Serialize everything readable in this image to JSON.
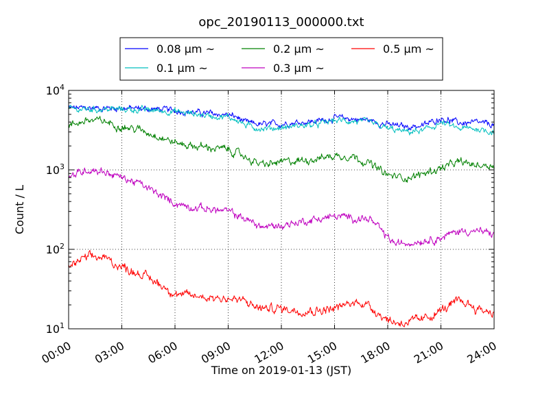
{
  "chart_data": {
    "type": "line",
    "title": "opc_20190113_000000.txt",
    "xlabel": "Time on 2019-01-13 (JST)",
    "ylabel": "Count / L",
    "xlim": [
      0,
      24
    ],
    "ylim": [
      10,
      10000
    ],
    "yscale": "log",
    "grid": true,
    "legend_position": "top-center",
    "x_ticks": [
      0,
      3,
      6,
      9,
      12,
      15,
      18,
      21,
      24
    ],
    "x_tick_labels": [
      "00:00",
      "03:00",
      "06:00",
      "09:00",
      "12:00",
      "15:00",
      "18:00",
      "21:00",
      "24:00"
    ],
    "y_ticks": [
      10,
      100,
      1000,
      10000
    ],
    "y_tick_labels": [
      {
        "base": "10",
        "exp": "1"
      },
      {
        "base": "10",
        "exp": "2"
      },
      {
        "base": "10",
        "exp": "3"
      },
      {
        "base": "10",
        "exp": "4"
      }
    ],
    "series": [
      {
        "name": "0.08 μm ~",
        "color": "#0000ff",
        "noise": 0.05,
        "x": [
          0,
          1,
          2,
          3,
          4,
          5,
          6,
          7,
          8,
          9,
          9.5,
          10,
          11,
          12,
          13,
          14,
          15,
          16,
          17,
          18,
          19,
          20,
          21,
          22,
          23,
          24
        ],
        "y": [
          6000,
          6000,
          6000,
          6000,
          5900,
          5800,
          5600,
          5300,
          5100,
          4900,
          4600,
          3900,
          3700,
          3800,
          4000,
          4100,
          4500,
          4400,
          4200,
          3700,
          3500,
          3600,
          4500,
          3900,
          3900,
          3700
        ]
      },
      {
        "name": "0.1 μm ~",
        "color": "#00bfbf",
        "noise": 0.05,
        "x": [
          0,
          1,
          2,
          3,
          4,
          5,
          6,
          7,
          8,
          9,
          9.5,
          10,
          11,
          12,
          13,
          14,
          15,
          16,
          17,
          18,
          19,
          20,
          21,
          22,
          23,
          24
        ],
        "y": [
          5800,
          5800,
          5800,
          5800,
          5700,
          5600,
          5400,
          5100,
          4800,
          4600,
          4300,
          3600,
          3300,
          3400,
          3600,
          3700,
          4200,
          4100,
          3900,
          3300,
          3000,
          3100,
          3900,
          3300,
          3300,
          3000
        ]
      },
      {
        "name": "0.2 μm ~",
        "color": "#008000",
        "noise": 0.06,
        "x": [
          0,
          0.5,
          1,
          2,
          3,
          4,
          5,
          6,
          7,
          8,
          9,
          10,
          10.5,
          11,
          12,
          13,
          14,
          15,
          16,
          17,
          18,
          19,
          19.5,
          20,
          21,
          22,
          23,
          24
        ],
        "y": [
          3500,
          3900,
          4200,
          4100,
          3500,
          3200,
          2700,
          2200,
          2000,
          1900,
          1800,
          1450,
          1250,
          1150,
          1250,
          1300,
          1400,
          1500,
          1500,
          1200,
          850,
          800,
          820,
          900,
          1050,
          1250,
          1150,
          1150
        ]
      },
      {
        "name": "0.3 μm ~",
        "color": "#bf00bf",
        "noise": 0.06,
        "x": [
          0,
          0.5,
          1,
          1.5,
          2,
          3,
          4,
          5,
          6,
          7,
          8,
          9,
          10,
          10.5,
          11,
          12,
          13,
          14,
          15,
          16,
          17,
          18,
          18.5,
          19,
          20,
          21,
          22,
          23,
          24
        ],
        "y": [
          800,
          900,
          1000,
          1000,
          950,
          800,
          670,
          500,
          380,
          340,
          320,
          300,
          240,
          210,
          190,
          200,
          220,
          240,
          260,
          250,
          240,
          140,
          115,
          120,
          130,
          140,
          170,
          170,
          155
        ]
      },
      {
        "name": "0.5 μm ~",
        "color": "#ff0000",
        "noise": 0.07,
        "x": [
          0,
          0.5,
          1,
          1.5,
          2,
          3,
          4,
          5,
          6,
          6.5,
          7,
          8,
          9,
          10,
          10.5,
          11,
          12,
          13,
          14,
          15,
          16,
          16.5,
          17,
          18,
          18.5,
          19,
          20,
          21,
          22,
          22.5,
          23,
          24
        ],
        "y": [
          60,
          70,
          78,
          80,
          78,
          60,
          50,
          38,
          28,
          26,
          26,
          25,
          24,
          22,
          19,
          18,
          18,
          17,
          17,
          18,
          21,
          22,
          19,
          13,
          12,
          12,
          13,
          17,
          22,
          21,
          18,
          16
        ]
      }
    ]
  }
}
